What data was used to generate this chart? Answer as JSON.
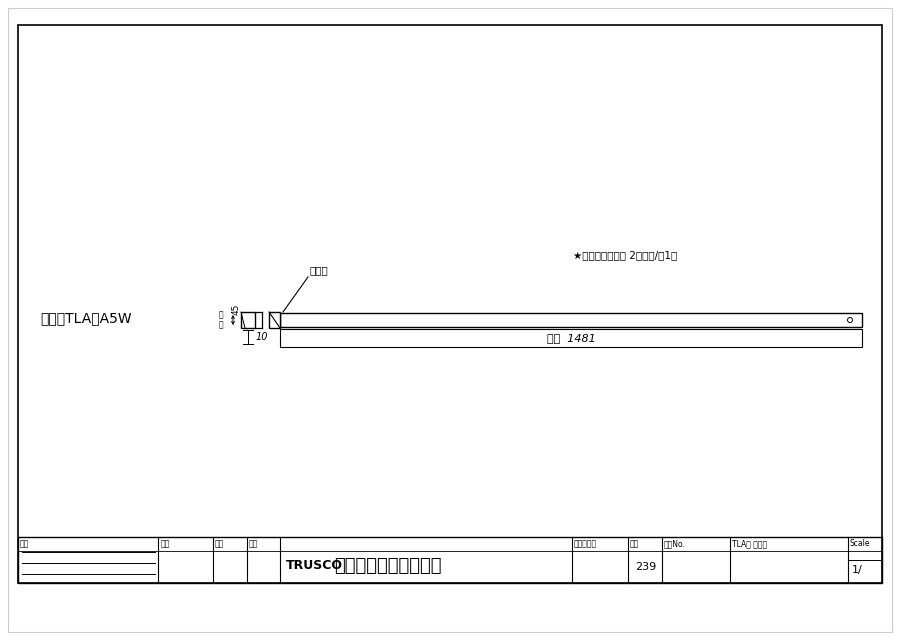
{
  "bg_color": "#ffffff",
  "line_color": "#000000",
  "product_code": "品番：TLA－A5W",
  "note_star": "★ボルト・ナット 2セット/や1本",
  "bolt_label": "ボルト",
  "width_label": "間口  1481",
  "dim_45": "45",
  "dim_ana_haba": "孔\n幅",
  "dim_10": "10",
  "footer_bangou": "番号",
  "footer_shounin": "承認",
  "footer_kenshou": "検図",
  "footer_sekkei": "設計",
  "footer_trusco": "TRUSCO",
  "footer_company": "トラスコ中山株式会社",
  "footer_nengappi": "設計年月日",
  "footer_zantei": "全番",
  "footer_zantei_no": "239",
  "footer_ukeiro": "受入No.",
  "footer_title": "TLA型 背当り",
  "footer_scale_label": "Scale",
  "footer_scale_val": "1/"
}
